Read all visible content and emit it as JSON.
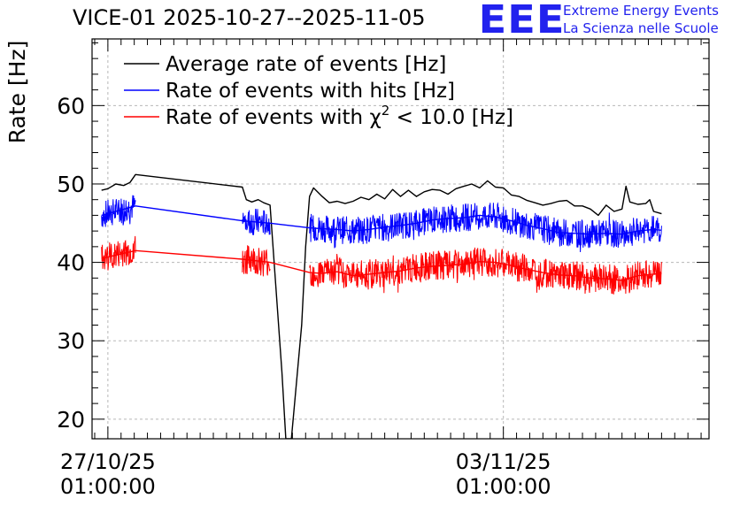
{
  "header": {
    "title": "VICE-01 2025-10-27--2025-11-05",
    "logo_text": "EEE",
    "logo_line1": "Extreme Energy Events",
    "logo_line2": "La Scienza nelle Scuole"
  },
  "colors": {
    "black": "#000000",
    "blue": "#0000ff",
    "red": "#ff0000",
    "logo": "#2222ee",
    "grid": "#b8b8b8"
  },
  "chart_data": {
    "type": "line",
    "title": "VICE-01 2025-10-27--2025-11-05",
    "ylabel": "Rate [Hz]",
    "xlabel": "",
    "x_units": "days since 27/10/25 01:00:00",
    "xlim": [
      -0.2,
      7.6
    ],
    "ylim": [
      17.5,
      68.5
    ],
    "yticks": [
      20,
      30,
      40,
      50,
      60
    ],
    "xticks": [
      {
        "x": 0,
        "line1": "27/10/25",
        "line2": "01:00:00"
      },
      {
        "x": 5,
        "line1": "03/11/25",
        "line2": "01:00:00"
      }
    ],
    "grid": true,
    "legend": {
      "position": "top-left",
      "entries": [
        {
          "label": "Average rate of events [Hz]",
          "color": "#000000"
        },
        {
          "label": "Rate of events with hits [Hz]",
          "color": "#0000ff"
        },
        {
          "label_prefix": "Rate of events with ",
          "chi": "χ",
          "sup": "2",
          "label_suffix": " < 10.0 [Hz]",
          "color": "#ff0000"
        }
      ]
    },
    "segments": [
      {
        "x0": -0.08,
        "x1": 0.35,
        "avg": 49.8,
        "hits": 46.0,
        "chi2": 40.5
      },
      {
        "x0": 1.7,
        "x1": 2.05,
        "avg": 49.6,
        "hits": 45.3,
        "chi2": 40.4
      },
      {
        "x0": 2.55,
        "x1": 7.0,
        "avg": 48.5,
        "hits": 44.4,
        "chi2": 38.7
      }
    ],
    "series": [
      {
        "name": "Average rate of events [Hz]",
        "color": "#000000",
        "x": [
          -0.08,
          0.0,
          0.1,
          0.2,
          0.28,
          0.35,
          1.7,
          1.75,
          1.82,
          1.9,
          1.97,
          2.05,
          2.2,
          2.25,
          2.26,
          2.32,
          2.45,
          2.5,
          2.55,
          2.6,
          2.7,
          2.8,
          2.9,
          3.0,
          3.1,
          3.2,
          3.3,
          3.4,
          3.5,
          3.6,
          3.7,
          3.8,
          3.9,
          4.0,
          4.1,
          4.2,
          4.3,
          4.4,
          4.5,
          4.6,
          4.7,
          4.8,
          4.9,
          5.0,
          5.1,
          5.2,
          5.3,
          5.4,
          5.5,
          5.6,
          5.7,
          5.8,
          5.9,
          6.0,
          6.1,
          6.2,
          6.3,
          6.4,
          6.5,
          6.55,
          6.6,
          6.7,
          6.8,
          6.85,
          6.9,
          7.0
        ],
        "y": [
          49.2,
          49.4,
          50.0,
          49.8,
          50.2,
          51.2,
          49.6,
          48.0,
          47.7,
          48.0,
          47.6,
          47.3,
          26.0,
          17.5,
          17.5,
          17.5,
          32.0,
          42.0,
          48.4,
          49.5,
          48.5,
          47.6,
          47.8,
          47.5,
          47.8,
          48.3,
          48.0,
          48.7,
          48.1,
          49.3,
          48.4,
          49.2,
          48.4,
          49.0,
          49.3,
          49.2,
          48.7,
          49.4,
          49.7,
          50.0,
          49.5,
          50.4,
          49.6,
          49.5,
          48.6,
          48.4,
          47.9,
          47.6,
          47.3,
          47.5,
          47.8,
          47.9,
          47.2,
          47.2,
          46.8,
          46.0,
          47.3,
          46.5,
          46.8,
          49.7,
          47.7,
          47.4,
          47.5,
          48.0,
          46.5,
          46.2
        ]
      },
      {
        "name": "Rate of events with hits [Hz]",
        "color": "#0000ff",
        "x": [
          -0.08,
          0.35,
          1.7,
          2.05,
          2.55,
          2.7,
          2.9,
          3.1,
          3.3,
          3.5,
          3.7,
          3.9,
          4.1,
          4.3,
          4.5,
          4.7,
          4.9,
          5.1,
          5.3,
          5.5,
          5.7,
          5.9,
          6.1,
          6.3,
          6.5,
          6.7,
          6.9,
          7.0
        ],
        "y": [
          46.0,
          47.2,
          45.3,
          45.0,
          44.4,
          44.3,
          44.2,
          44.0,
          44.2,
          44.5,
          44.7,
          45.0,
          45.4,
          45.6,
          45.7,
          46.0,
          45.8,
          45.3,
          44.7,
          44.3,
          43.8,
          43.7,
          43.6,
          43.7,
          43.6,
          44.0,
          44.2,
          44.1
        ]
      },
      {
        "name": "Rate of events with χ2 < 10.0 [Hz]",
        "color": "#ff0000",
        "x": [
          -0.08,
          0.35,
          1.7,
          2.05,
          2.55,
          2.7,
          2.9,
          3.1,
          3.3,
          3.5,
          3.7,
          3.9,
          4.1,
          4.3,
          4.5,
          4.7,
          4.9,
          5.1,
          5.3,
          5.5,
          5.7,
          5.9,
          6.1,
          6.3,
          6.5,
          6.7,
          6.9,
          7.0
        ],
        "y": [
          40.5,
          41.5,
          40.4,
          40.0,
          38.7,
          38.6,
          38.8,
          38.3,
          38.5,
          38.7,
          38.9,
          39.3,
          39.5,
          39.6,
          39.8,
          40.1,
          40.0,
          39.6,
          39.1,
          38.7,
          38.4,
          38.3,
          38.0,
          37.9,
          37.7,
          38.3,
          38.5,
          38.6
        ]
      }
    ]
  }
}
